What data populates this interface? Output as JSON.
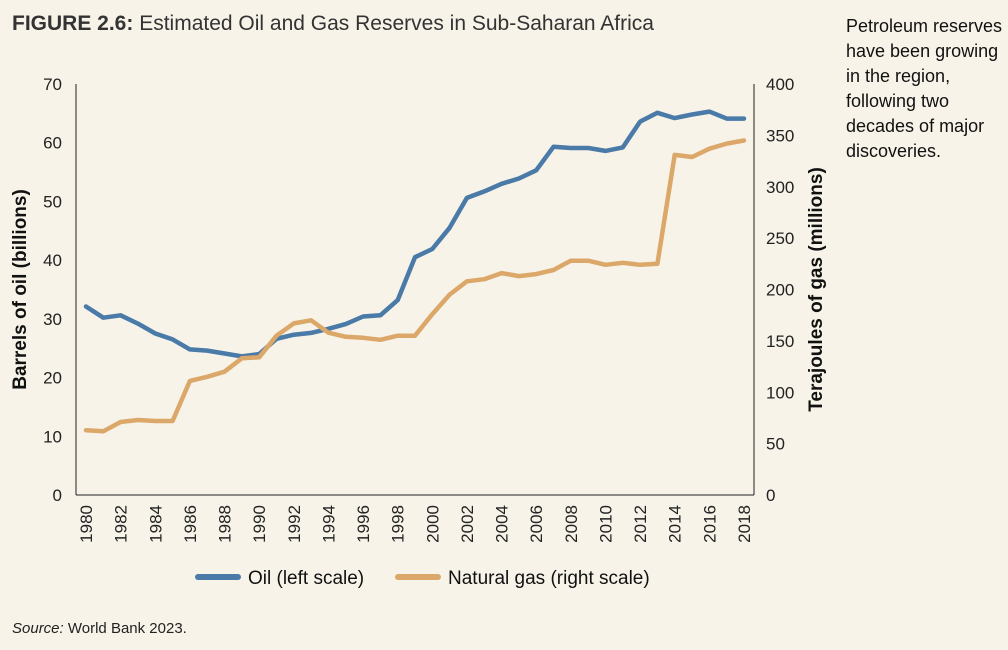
{
  "figure": {
    "label": "FIGURE 2.6:",
    "title": "Estimated Oil and Gas Reserves in Sub-Saharan Africa",
    "note": "Petroleum reserves have been growing in the region, following two decades of major discoveries.",
    "source_label": "Source:",
    "source_text": "World Bank 2023."
  },
  "chart_data": {
    "type": "line",
    "x": [
      1980,
      1981,
      1982,
      1983,
      1984,
      1985,
      1986,
      1987,
      1988,
      1989,
      1990,
      1991,
      1992,
      1993,
      1994,
      1995,
      1996,
      1997,
      1998,
      1999,
      2000,
      2001,
      2002,
      2003,
      2004,
      2005,
      2006,
      2007,
      2008,
      2009,
      2010,
      2011,
      2012,
      2013,
      2014,
      2015,
      2016,
      2017,
      2018
    ],
    "x_tick_labels": [
      "1980",
      "1982",
      "1984",
      "1986",
      "1988",
      "1990",
      "1992",
      "1994",
      "1996",
      "1998",
      "2000",
      "2002",
      "2004",
      "2006",
      "2008",
      "2010",
      "2012",
      "2014",
      "2016",
      "2018"
    ],
    "ylabel_left": "Barrels of oil (billions)",
    "ylabel_right": "Terajoules of gas (millions)",
    "ylim_left": [
      0,
      70
    ],
    "ylim_right": [
      0,
      400
    ],
    "yticks_left": [
      "0",
      "10",
      "20",
      "30",
      "40",
      "50",
      "60",
      "70"
    ],
    "yticks_right": [
      "0",
      "50",
      "100",
      "150",
      "200",
      "250",
      "300",
      "350",
      "400"
    ],
    "grid": false,
    "legend_position": "bottom",
    "series": [
      {
        "name": "Oil (left scale)",
        "axis": "left",
        "color": "#4a7aa8",
        "values": [
          32.1,
          30.2,
          30.6,
          29.2,
          27.5,
          26.5,
          24.8,
          24.6,
          24.1,
          23.6,
          24.0,
          26.6,
          27.3,
          27.6,
          28.3,
          29.1,
          30.4,
          30.6,
          33.2,
          40.5,
          41.9,
          45.5,
          50.6,
          51.7,
          53.0,
          53.9,
          55.3,
          59.3,
          59.1,
          59.1,
          58.6,
          59.2,
          63.6,
          65.1,
          64.2,
          64.8,
          65.3,
          64.1,
          64.1
        ]
      },
      {
        "name": "Natural gas (right scale)",
        "axis": "right",
        "color": "#dba86a",
        "values": [
          63,
          62,
          71,
          73,
          72,
          72,
          111,
          115,
          120,
          133,
          134,
          155,
          167,
          170,
          158,
          154,
          153,
          151,
          155,
          155,
          176,
          195,
          208,
          210,
          216,
          213,
          215,
          219,
          228,
          228,
          224,
          226,
          224,
          225,
          331,
          329,
          337,
          342,
          345
        ]
      }
    ]
  }
}
